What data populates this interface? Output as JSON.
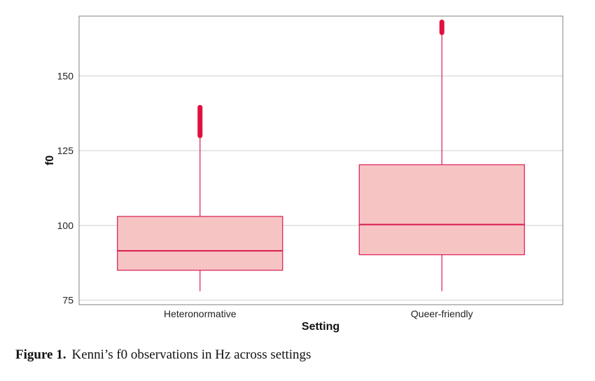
{
  "caption": {
    "label": "Figure 1.",
    "text": "Kenni’s f0 observations in Hz across settings"
  },
  "colors": {
    "box_fill": "#f7c4c4",
    "box_stroke": "#d81b50",
    "outlier": "#e0103e",
    "grid": "#cfcfcf",
    "frame": "#808080"
  },
  "chart_data": {
    "type": "box",
    "xlabel": "Setting",
    "ylabel": "f0",
    "ylim": [
      73.5,
      170
    ],
    "yticks": [
      75,
      100,
      125,
      150
    ],
    "grid": true,
    "categories": [
      "Heteronormative",
      "Queer-friendly"
    ],
    "boxes": [
      {
        "category": "Heteronormative",
        "whisker_low": 78,
        "q1": 85,
        "median": 91.5,
        "q3": 103,
        "whisker_high": 130,
        "outliers_range": [
          130,
          139.5
        ]
      },
      {
        "category": "Queer-friendly",
        "whisker_low": 78,
        "q1": 90.2,
        "median": 100.3,
        "q3": 120.3,
        "whisker_high": 164.5,
        "outliers_range": [
          164.5,
          168
        ]
      }
    ]
  }
}
